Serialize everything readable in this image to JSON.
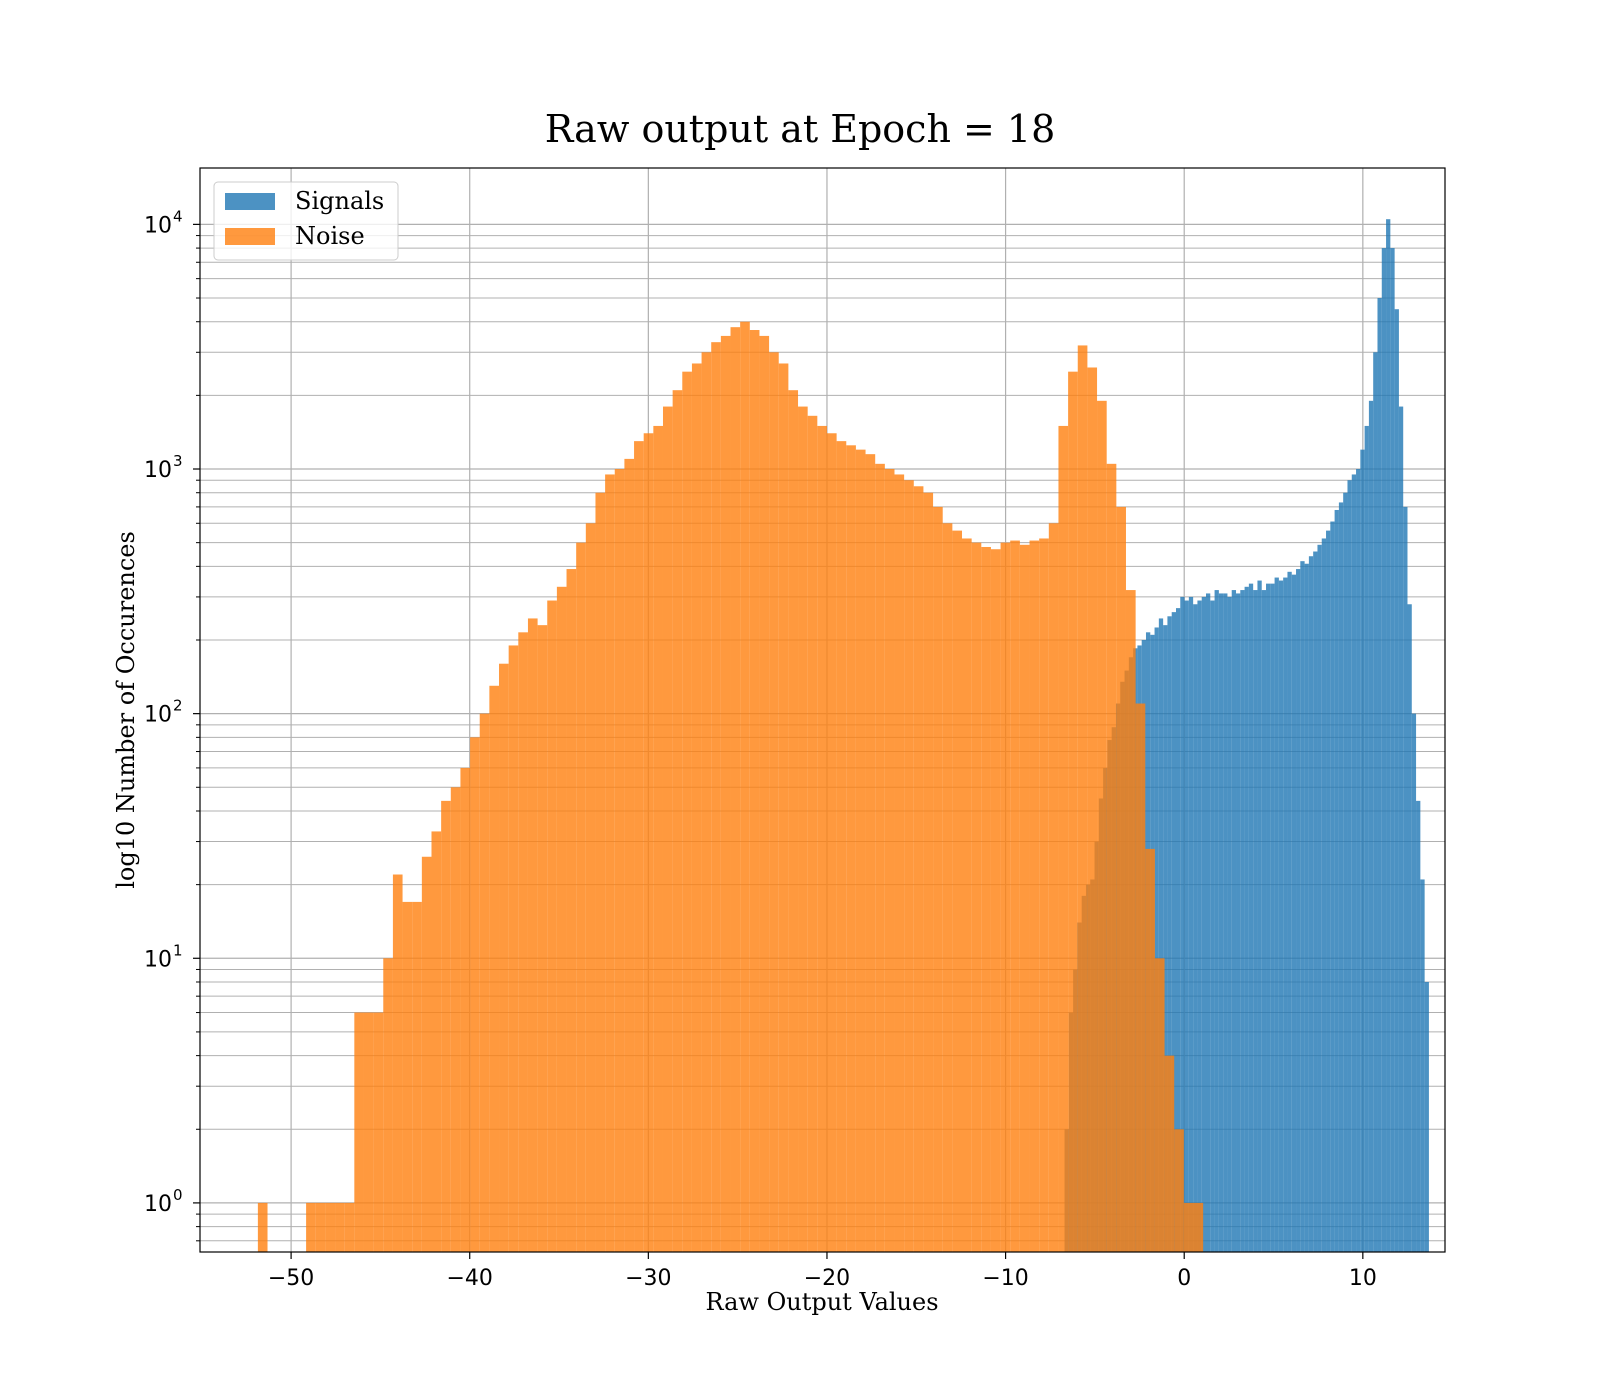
{
  "chart_data": {
    "type": "bar",
    "title": "Raw output at Epoch = 18",
    "xlabel": "Raw Output Values",
    "ylabel": "log10 Number of Occurences",
    "xlim": [
      -55.1,
      14.6
    ],
    "ylim": [
      0.63,
      17000
    ],
    "yscale": "log",
    "grid": true,
    "legend_position": "top-left",
    "x_ticks": [
      -50,
      -40,
      -30,
      -20,
      -10,
      0,
      10
    ],
    "x_tick_labels": [
      "−50",
      "−40",
      "−30",
      "−20",
      "−10",
      "0",
      "10"
    ],
    "y_ticks": [
      1,
      10,
      100,
      1000,
      10000
    ],
    "y_tick_labels": [
      {
        "base": "10",
        "exp": "0"
      },
      {
        "base": "10",
        "exp": "1"
      },
      {
        "base": "10",
        "exp": "2"
      },
      {
        "base": "10",
        "exp": "3"
      },
      {
        "base": "10",
        "exp": "4"
      }
    ],
    "series": [
      {
        "name": "Signals",
        "color": "#1f77b4",
        "opacity": 0.8,
        "bin_start": -6.7,
        "bin_width": 0.24,
        "values": [
          2,
          6,
          9,
          14,
          18,
          20,
          21,
          30,
          45,
          60,
          78,
          88,
          110,
          135,
          150,
          170,
          185,
          190,
          200,
          215,
          210,
          225,
          245,
          230,
          250,
          260,
          270,
          300,
          290,
          300,
          280,
          290,
          300,
          310,
          290,
          320,
          310,
          310,
          300,
          320,
          310,
          320,
          330,
          340,
          320,
          350,
          320,
          340,
          340,
          360,
          350,
          360,
          380,
          370,
          390,
          420,
          410,
          440,
          460,
          490,
          520,
          560,
          610,
          680,
          730,
          800,
          900,
          950,
          1000,
          1200,
          1500,
          1900,
          3000,
          5000,
          8000,
          10500,
          8000,
          4500,
          1800,
          700,
          280,
          100,
          44,
          21,
          8
        ]
      },
      {
        "name": "Noise",
        "color": "#ff7f0e",
        "opacity": 0.8,
        "bin_start": -52.4,
        "bin_width": 0.54,
        "values": [
          0,
          1,
          0,
          0,
          0,
          0,
          1,
          1,
          1,
          1,
          1,
          6,
          6,
          6,
          10,
          22,
          17,
          17,
          26,
          33,
          44,
          50,
          60,
          80,
          100,
          130,
          160,
          190,
          215,
          245,
          230,
          290,
          330,
          390,
          500,
          600,
          800,
          950,
          1000,
          1100,
          1300,
          1400,
          1500,
          1800,
          2100,
          2500,
          2700,
          3000,
          3300,
          3500,
          3800,
          4000,
          3700,
          3500,
          3000,
          2700,
          2100,
          1800,
          1650,
          1500,
          1400,
          1300,
          1250,
          1200,
          1150,
          1050,
          1000,
          950,
          900,
          850,
          800,
          700,
          600,
          560,
          520,
          500,
          480,
          470,
          500,
          510,
          490,
          510,
          520,
          600,
          1500,
          2500,
          3200,
          2600,
          1900,
          1050,
          700,
          320,
          110,
          28,
          10,
          4,
          2,
          1,
          1
        ]
      }
    ]
  }
}
